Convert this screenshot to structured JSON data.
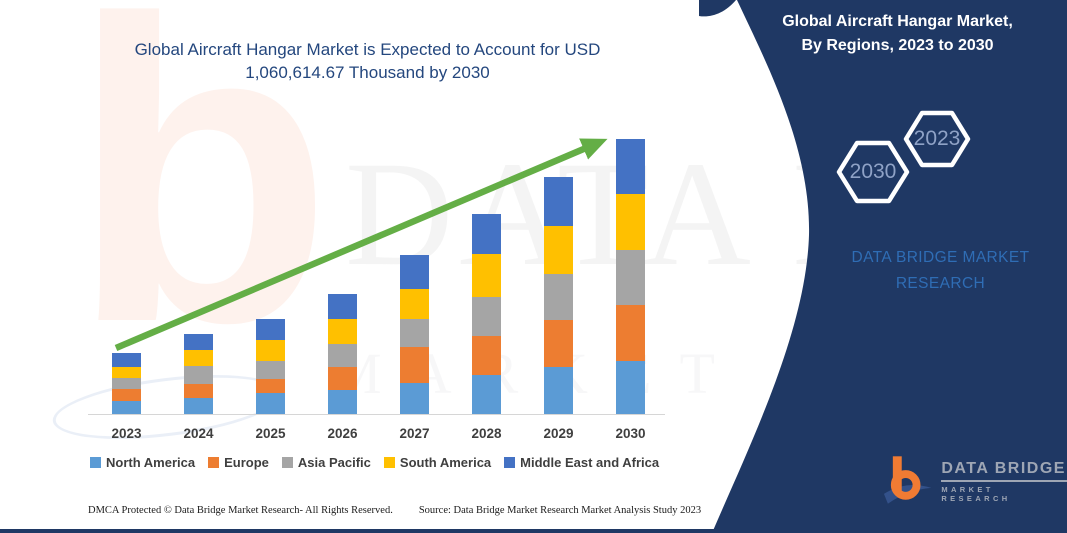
{
  "main_title": {
    "line1": "Global Aircraft Hangar Market is Expected to Account for USD",
    "line2": "1,060,614.67 Thousand by 2030"
  },
  "side_panel": {
    "title_line1": "Global Aircraft Hangar Market,",
    "title_line2": "By Regions, 2023 to 2030",
    "hexagons": [
      {
        "label": "2030"
      },
      {
        "label": "2023"
      }
    ],
    "brand_name": "DATA BRIDGE MARKET RESEARCH",
    "panel_color": "#1F3864",
    "brand_text_color": "#2F6DB5"
  },
  "chart_data": {
    "type": "bar",
    "stacked": true,
    "title": "Global Aircraft Hangar Market is Expected to Account for USD 1,060,614.67 Thousand by 2030",
    "xlabel": "",
    "ylabel": "",
    "categories": [
      "2023",
      "2024",
      "2025",
      "2026",
      "2027",
      "2028",
      "2029",
      "2030"
    ],
    "series": [
      {
        "name": "North America",
        "color": "#5B9BD5",
        "values": [
          13,
          16,
          21,
          24,
          31,
          39,
          47,
          53
        ]
      },
      {
        "name": "Europe",
        "color": "#ED7D31",
        "values": [
          12,
          14,
          14,
          23,
          36,
          39,
          47,
          56
        ]
      },
      {
        "name": "Asia Pacific",
        "color": "#A5A5A5",
        "values": [
          11,
          18,
          18,
          23,
          28,
          39,
          46,
          55
        ]
      },
      {
        "name": "South America",
        "color": "#FFC000",
        "values": [
          11,
          16,
          21,
          25,
          30,
          43,
          48,
          56
        ]
      },
      {
        "name": "Middle East and Africa",
        "color": "#4472C4",
        "values": [
          14,
          16,
          21,
          25,
          34,
          40,
          49,
          55
        ]
      }
    ],
    "value_units": "relative stacked-segment heights in px (chart shows no numeric axis)",
    "implied_2030_total_usd_thousand": 1060614.67,
    "legend_position": "bottom",
    "grid": false,
    "axis_visible": {
      "x": true,
      "y": false
    },
    "annotation": "green upward trend arrow from 2023 to 2030",
    "trend_arrow_color": "#64AE46",
    "axis_line_color": "#D6D6D6"
  },
  "watermark": {
    "letter": "b",
    "big_text": "DATA BRIDGE",
    "sub_text": "MARKET RESEARCH"
  },
  "logo": {
    "letter": "b",
    "brand": "DATA BRIDGE",
    "sub": "MARKET RESEARCH"
  },
  "footer": {
    "dmca": "DMCA Protected © Data Bridge Market Research-  All Rights Reserved.",
    "source": "Source: Data Bridge Market Research  Market Analysis Study 2023"
  }
}
